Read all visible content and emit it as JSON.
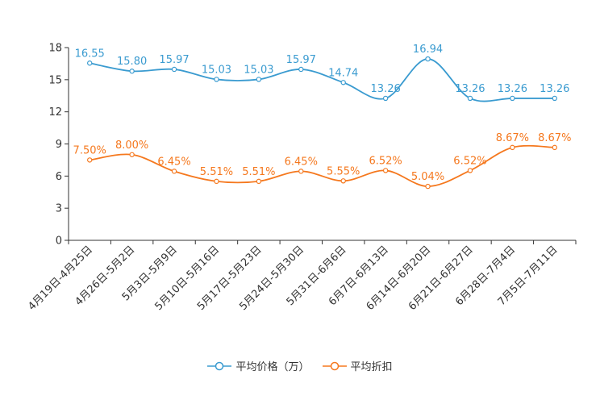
{
  "chart_data": {
    "type": "line",
    "categories": [
      "4月19日-4月25日",
      "4月26日-5月2日",
      "5月3日-5月9日",
      "5月10日-5月16日",
      "5月17日-5月23日",
      "5月24日-5月30日",
      "5月31日-6月6日",
      "6月7日-6月13日",
      "6月14日-6月20日",
      "6月21日-6月27日",
      "6月28日-7月4日",
      "7月5日-7月11日"
    ],
    "y_ticks": [
      "0",
      "3",
      "6",
      "9",
      "12",
      "15",
      "18"
    ],
    "ylim": [
      0,
      18
    ],
    "series": [
      {
        "name": "平均价格（万）",
        "color": "#3a9bd0",
        "values": [
          16.55,
          15.8,
          15.97,
          15.03,
          15.03,
          15.97,
          14.74,
          13.26,
          16.94,
          13.26,
          13.26,
          13.26
        ],
        "labels": [
          "16.55",
          "15.80",
          "15.97",
          "15.03",
          "15.03",
          "15.97",
          "14.74",
          "13.26",
          "16.94",
          "13.26",
          "13.26",
          "13.26"
        ]
      },
      {
        "name": "平均折扣",
        "color": "#f5781e",
        "values": [
          7.5,
          8.0,
          6.45,
          5.51,
          5.51,
          6.45,
          5.55,
          6.52,
          5.04,
          6.52,
          8.67,
          8.67
        ],
        "labels": [
          "7.50%",
          "8.00%",
          "6.45%",
          "5.51%",
          "5.51%",
          "6.45%",
          "5.55%",
          "6.52%",
          "5.04%",
          "6.52%",
          "8.67%",
          "8.67%"
        ]
      }
    ]
  }
}
